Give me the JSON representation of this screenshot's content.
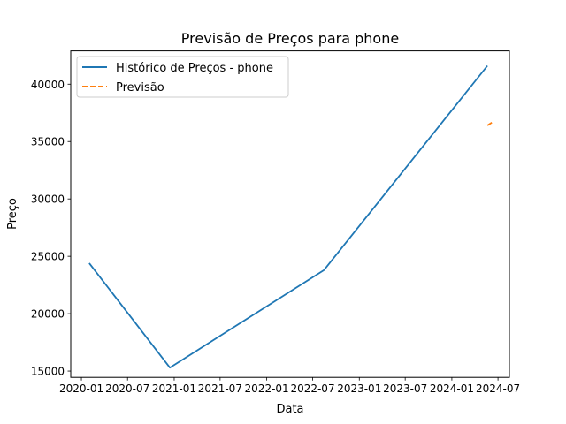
{
  "chart_data": {
    "type": "line",
    "title": "Previsão de Preços para phone",
    "xlabel": "Data",
    "ylabel": "Preço",
    "x_ticks": [
      "2020-01",
      "2020-07",
      "2021-01",
      "2021-07",
      "2022-01",
      "2022-07",
      "2023-01",
      "2023-07",
      "2024-01",
      "2024-07"
    ],
    "y_ticks": [
      15000,
      20000,
      25000,
      30000,
      35000,
      40000
    ],
    "xlim": [
      "2019-11-20",
      "2024-08-15"
    ],
    "ylim": [
      14450,
      42900
    ],
    "grid": false,
    "legend_position": "top-left",
    "series": [
      {
        "name": "Histórico de Preços - phone",
        "color": "#1f77b4",
        "style": "solid",
        "points": [
          {
            "x": "2020-02-01",
            "y": 24400
          },
          {
            "x": "2020-12-15",
            "y": 15300
          },
          {
            "x": "2022-08-15",
            "y": 23800
          },
          {
            "x": "2024-05-20",
            "y": 41600
          }
        ]
      },
      {
        "name": "Previsão",
        "color": "#ff7f0e",
        "style": "dashed",
        "points": [
          {
            "x": "2024-05-20",
            "y": 36400
          },
          {
            "x": "2024-06-10",
            "y": 36700
          }
        ]
      }
    ]
  }
}
